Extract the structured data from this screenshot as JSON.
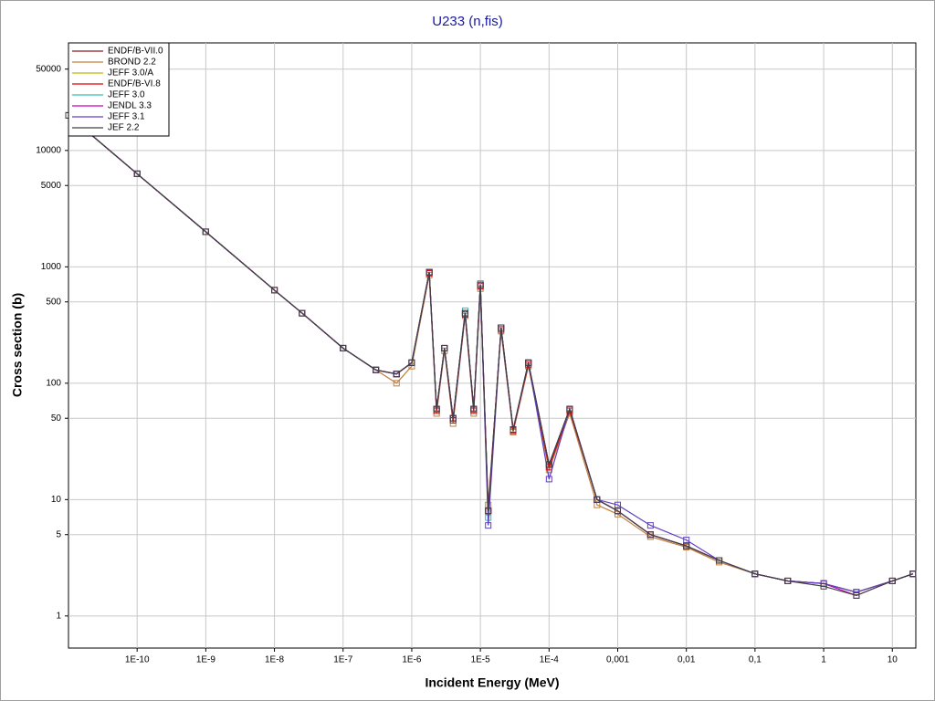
{
  "chart_data": {
    "type": "line",
    "title": "U233 (n,fis)",
    "x_label": "Incident Energy (MeV)",
    "y_label": "Cross section (b)",
    "xscale": "log",
    "yscale": "log",
    "grid": true,
    "legend": "upper left",
    "xlim": [
      1e-11,
      22
    ],
    "ylim": [
      0.53,
      84000
    ],
    "xticks": [
      {
        "value": 1e-10,
        "label": "1E-10"
      },
      {
        "value": 1e-09,
        "label": "1E-9"
      },
      {
        "value": 1e-08,
        "label": "1E-8"
      },
      {
        "value": 1e-07,
        "label": "1E-7"
      },
      {
        "value": 1e-06,
        "label": "1E-6"
      },
      {
        "value": 1e-05,
        "label": "1E-5"
      },
      {
        "value": 0.0001,
        "label": "1E-4"
      },
      {
        "value": 0.001,
        "label": "0,001"
      },
      {
        "value": 0.01,
        "label": "0,01"
      },
      {
        "value": 0.1,
        "label": "0,1"
      },
      1,
      10
    ],
    "yticks": [
      1,
      5,
      10,
      50,
      100,
      500,
      1000,
      5000,
      10000,
      50000
    ],
    "x": [
      1e-11,
      1e-10,
      1e-09,
      1e-08,
      2.53e-08,
      1e-07,
      3e-07,
      6e-07,
      1e-06,
      1.8e-06,
      2.3e-06,
      3e-06,
      4e-06,
      6e-06,
      8e-06,
      1e-05,
      1.3e-05,
      2e-05,
      3e-05,
      5e-05,
      0.0001,
      0.0002,
      0.0005,
      0.001,
      0.003,
      0.01,
      0.03,
      0.1,
      0.3,
      1,
      3,
      10,
      20
    ],
    "series": [
      {
        "name": "ENDF/B-VII.0",
        "color": "#8b1a1a",
        "values": [
          20000,
          6300,
          2000,
          630,
          400,
          200,
          130,
          120,
          150,
          900,
          60,
          200,
          50,
          400,
          60,
          700,
          8,
          300,
          40,
          150,
          20,
          60,
          10,
          8,
          5,
          4,
          3,
          2.3,
          2,
          1.9,
          1.6,
          2,
          2.3
        ]
      },
      {
        "name": "BROND 2.2",
        "color": "#c08040",
        "values": [
          20000,
          6300,
          2000,
          630,
          400,
          200,
          130,
          100,
          140,
          850,
          55,
          190,
          45,
          380,
          55,
          650,
          9,
          280,
          38,
          140,
          18,
          55,
          9,
          7.5,
          4.8,
          3.9,
          2.9,
          2.3,
          2,
          1.9,
          1.6,
          2,
          2.3
        ]
      },
      {
        "name": "JEFF 3.0/A",
        "color": "#c8b400",
        "values": [
          20000,
          6300,
          2000,
          630,
          400,
          200,
          130,
          120,
          150,
          900,
          60,
          200,
          50,
          400,
          60,
          700,
          8,
          300,
          40,
          150,
          20,
          60,
          10,
          8,
          5,
          4,
          3,
          2.3,
          2,
          1.9,
          1.6,
          2,
          2.3
        ]
      },
      {
        "name": "ENDF/B-VI.8",
        "color": "#e00000",
        "values": [
          20000,
          6300,
          2000,
          630,
          400,
          200,
          130,
          120,
          150,
          880,
          58,
          200,
          48,
          390,
          58,
          680,
          8,
          290,
          39,
          145,
          19,
          58,
          10,
          8,
          5,
          4,
          3,
          2.3,
          2,
          1.9,
          1.6,
          2,
          2.3
        ]
      },
      {
        "name": "JEFF 3.0",
        "color": "#30c0c0",
        "values": [
          20000,
          6300,
          2000,
          630,
          400,
          200,
          130,
          120,
          150,
          900,
          60,
          200,
          50,
          420,
          60,
          720,
          7,
          300,
          40,
          150,
          20,
          60,
          10,
          8,
          5,
          4,
          3,
          2.3,
          2,
          1.9,
          1.6,
          2,
          2.3
        ]
      },
      {
        "name": "JENDL 3.3",
        "color": "#c000c0",
        "values": [
          20000,
          6300,
          2000,
          630,
          400,
          200,
          130,
          120,
          150,
          900,
          60,
          200,
          50,
          400,
          60,
          700,
          8,
          300,
          40,
          150,
          20,
          60,
          10,
          8,
          5,
          4,
          3,
          2.3,
          2,
          1.9,
          1.5,
          2,
          2.3
        ]
      },
      {
        "name": "JEFF 3.1",
        "color": "#6040c0",
        "values": [
          20000,
          6300,
          2000,
          630,
          400,
          200,
          130,
          120,
          150,
          900,
          60,
          200,
          50,
          400,
          60,
          700,
          6,
          300,
          40,
          150,
          15,
          60,
          10,
          9,
          6,
          4.5,
          3,
          2.3,
          2,
          1.9,
          1.6,
          2,
          2.3
        ]
      },
      {
        "name": "JEF 2.2",
        "color": "#404040",
        "values": [
          20000,
          6300,
          2000,
          630,
          400,
          200,
          130,
          120,
          150,
          900,
          60,
          200,
          50,
          400,
          60,
          700,
          8,
          300,
          40,
          150,
          20,
          60,
          10,
          8,
          5,
          4,
          3,
          2.3,
          2,
          1.8,
          1.5,
          2,
          2.3
        ]
      }
    ]
  }
}
